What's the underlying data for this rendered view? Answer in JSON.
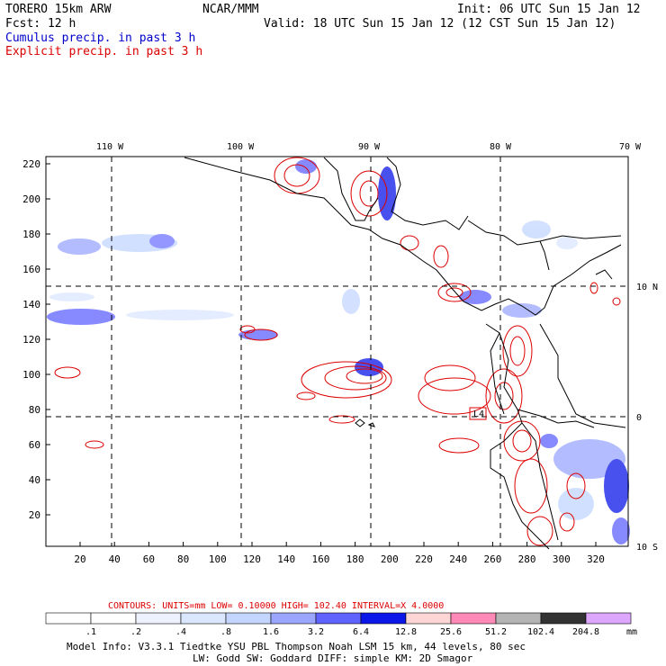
{
  "header": {
    "model": "TORERO  15km ARW",
    "org": "NCAR/MMM",
    "init": "Init: 06 UTC Sun 15 Jan 12",
    "fcst": "Fcst:   12 h",
    "valid": "Valid: 18 UTC Sun 15 Jan 12 (12 CST Sun 15 Jan 12)",
    "cumulus_label": "Cumulus precip. in past 3 h",
    "explicit_label": "Explicit precip. in past 3 h"
  },
  "colors": {
    "cumulus": "#0000cc",
    "explicit": "#dd0000",
    "coast": "#000000"
  },
  "map": {
    "lon_labels": [
      "110 W",
      "100 W",
      "90 W",
      "80 W",
      "70 W"
    ],
    "lat_labels": [
      "10 N",
      "0",
      "10 S"
    ],
    "y_ticks": [
      "220",
      "200",
      "180",
      "160",
      "140",
      "120",
      "100",
      "80",
      "60",
      "40",
      "20"
    ],
    "x_ticks": [
      "20",
      "40",
      "60",
      "80",
      "100",
      "120",
      "140",
      "160",
      "180",
      "200",
      "220",
      "240",
      "260",
      "280",
      "300",
      "320"
    ],
    "box_label": "L4"
  },
  "contours_line": {
    "text": "CONTOURS:  UNITS=mm  LOW= 0.10000      HIGH=  102.40     INTERVAL=X  4.0000"
  },
  "colorbar": {
    "labels": [
      ".1",
      ".2",
      ".4",
      ".8",
      "1.6",
      "3.2",
      "6.4",
      "12.8",
      "25.6",
      "51.2",
      "102.4",
      "204.8"
    ],
    "colors": [
      "#ffffff",
      "#ffffff",
      "#eef2ff",
      "#dbe6ff",
      "#c4d6ff",
      "#9aa6ff",
      "#5f63ff",
      "#0b16e8",
      "#ffd6d6",
      "#ff8ab8",
      "#b4b4b4",
      "#333333",
      "#dda6ff"
    ],
    "unit": "mm"
  },
  "footer": {
    "line1": "Model Info: V3.3.1   Tiedtke YSU PBL  Thompson    Noah LSM  15 km,   44 levels,   80 sec",
    "line2": "LW: Godd SW: Goddard DIFF: simple KM: 2D Smagor"
  }
}
